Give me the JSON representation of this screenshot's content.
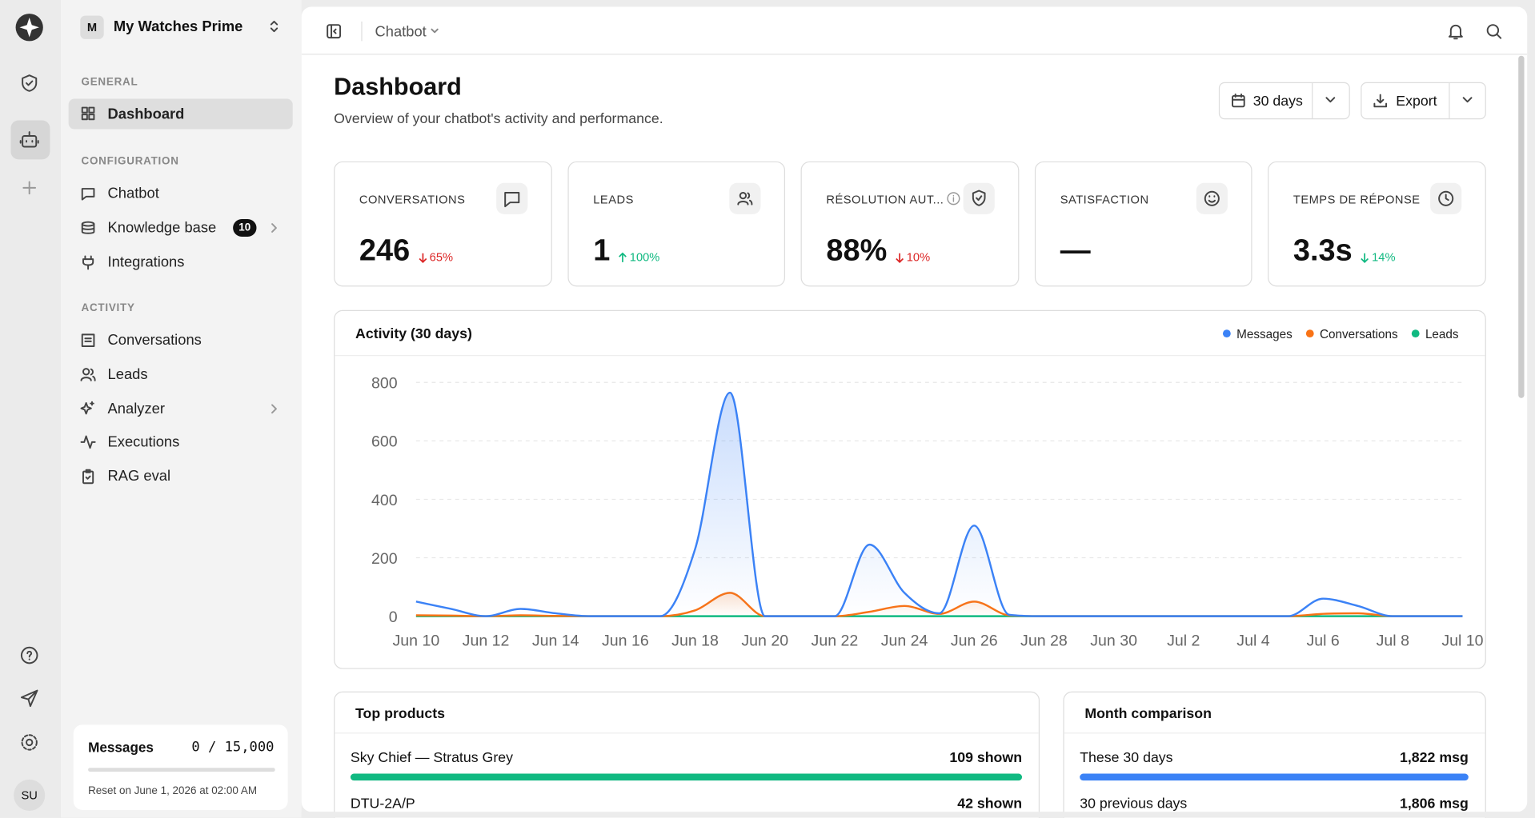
{
  "workspace": {
    "initial": "M",
    "name": "My Watches Prime"
  },
  "sidebar": {
    "sections": [
      {
        "label": "GENERAL",
        "items": [
          "Dashboard"
        ]
      },
      {
        "label": "CONFIGURATION",
        "items": [
          "Chatbot",
          "Knowledge base",
          "Integrations"
        ]
      },
      {
        "label": "ACTIVITY",
        "items": [
          "Conversations",
          "Leads",
          "Analyzer",
          "Executions",
          "RAG eval"
        ]
      }
    ],
    "knowledge_badge": "10"
  },
  "usage": {
    "title": "Messages",
    "count": "0 / 15,000",
    "reset": "Reset on June 1, 2026 at 02:00 AM"
  },
  "user": {
    "initials": "SU"
  },
  "topbar": {
    "breadcrumb": "Chatbot"
  },
  "header": {
    "title": "Dashboard",
    "subtitle": "Overview of your chatbot's activity and performance.",
    "range": "30 days",
    "export": "Export"
  },
  "kpis": [
    {
      "label": "CONVERSATIONS",
      "value": "246",
      "change": "65%",
      "direction": "down",
      "color": "#dc2626"
    },
    {
      "label": "LEADS",
      "value": "1",
      "change": "100%",
      "direction": "up",
      "color": "#10b981"
    },
    {
      "label": "RÉSOLUTION AUT...",
      "value": "88%",
      "change": "10%",
      "direction": "down",
      "color": "#dc2626"
    },
    {
      "label": "SATISFACTION",
      "value": "—"
    },
    {
      "label": "TEMPS DE RÉPONSE",
      "value": "3.3s",
      "change": "14%",
      "direction": "down",
      "color": "#10b981"
    }
  ],
  "chart_data": {
    "type": "line",
    "title": "Activity (30 days)",
    "categories": [
      "Jun 10",
      null,
      "Jun 12",
      null,
      "Jun 14",
      null,
      "Jun 16",
      null,
      "Jun 18",
      null,
      "Jun 20",
      null,
      "Jun 22",
      null,
      "Jun 24",
      null,
      "Jun 26",
      null,
      "Jun 28",
      null,
      "Jun 30",
      null,
      "Jul 2",
      null,
      "Jul 4",
      null,
      "Jul 6",
      null,
      "Jul 8",
      null,
      "Jul 10"
    ],
    "series": [
      {
        "name": "Messages",
        "color": "#3b82f6",
        "values": [
          50,
          25,
          0,
          25,
          10,
          0,
          0,
          0,
          230,
          765,
          0,
          0,
          0,
          245,
          80,
          10,
          310,
          5,
          0,
          0,
          0,
          0,
          0,
          0,
          0,
          0,
          60,
          35,
          0,
          0,
          0
        ]
      },
      {
        "name": "Conversations",
        "color": "#f97316",
        "values": [
          3,
          2,
          0,
          3,
          1,
          0,
          0,
          0,
          20,
          80,
          0,
          0,
          0,
          15,
          35,
          8,
          50,
          3,
          0,
          0,
          0,
          0,
          0,
          0,
          0,
          0,
          8,
          10,
          0,
          0,
          0
        ]
      },
      {
        "name": "Leads",
        "color": "#10b981",
        "values": [
          0,
          0,
          0,
          0,
          0,
          0,
          0,
          0,
          0,
          0,
          0,
          0,
          0,
          0,
          0,
          0,
          0,
          0,
          0,
          0,
          0,
          0,
          0,
          0,
          0,
          0,
          0,
          0,
          0,
          0,
          0
        ]
      }
    ],
    "ylim": [
      0,
      800
    ],
    "yticks": [
      0,
      200,
      400,
      600,
      800
    ],
    "grid": true,
    "legend": "top-right"
  },
  "top_products": {
    "title": "Top products",
    "color": "#10b981",
    "items": [
      {
        "name": "Sky Chief — Stratus Grey",
        "value": 109,
        "value_label": "109 shown"
      },
      {
        "name": "DTU-2A/P",
        "value": 42,
        "value_label": "42 shown"
      }
    ]
  },
  "month_comparison": {
    "title": "Month comparison",
    "color": "#3b82f6",
    "items": [
      {
        "name": "These 30 days",
        "value": 1822,
        "value_label": "1,822 msg"
      },
      {
        "name": "30 previous days",
        "value": 1806,
        "value_label": "1,806 msg"
      }
    ]
  }
}
